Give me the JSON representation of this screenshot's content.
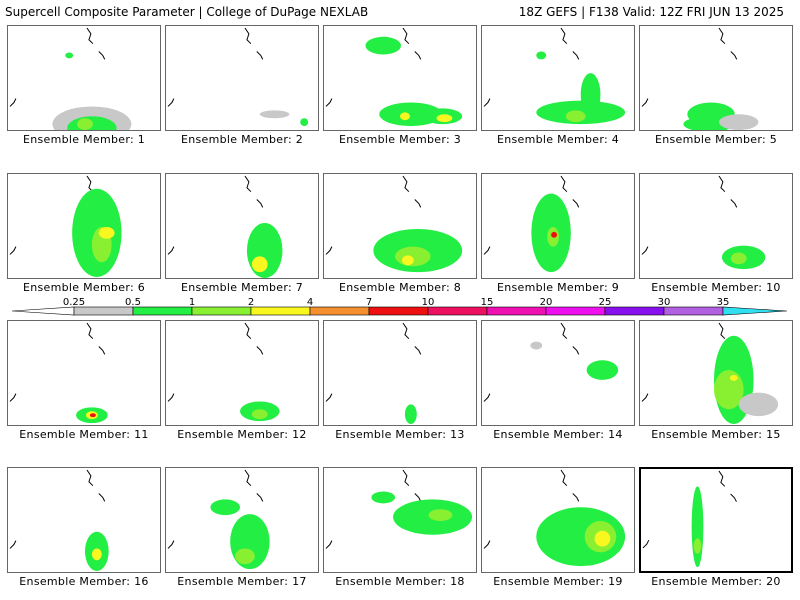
{
  "header": {
    "left": "Supercell Composite Parameter | College of DuPage NEXLAB",
    "right": "18Z GEFS | F138 Valid: 12Z FRI JUN 13 2025"
  },
  "members": [
    {
      "label": "Ensemble Member: 1"
    },
    {
      "label": "Ensemble Member: 2"
    },
    {
      "label": "Ensemble Member: 3"
    },
    {
      "label": "Ensemble Member: 4"
    },
    {
      "label": "Ensemble Member: 5"
    },
    {
      "label": "Ensemble Member: 6"
    },
    {
      "label": "Ensemble Member: 7"
    },
    {
      "label": "Ensemble Member: 8"
    },
    {
      "label": "Ensemble Member: 9"
    },
    {
      "label": "Ensemble Member: 10"
    },
    {
      "label": "Ensemble Member: 11"
    },
    {
      "label": "Ensemble Member: 12"
    },
    {
      "label": "Ensemble Member: 13"
    },
    {
      "label": "Ensemble Member: 14"
    },
    {
      "label": "Ensemble Member: 15"
    },
    {
      "label": "Ensemble Member: 16"
    },
    {
      "label": "Ensemble Member: 17"
    },
    {
      "label": "Ensemble Member: 18"
    },
    {
      "label": "Ensemble Member: 19"
    },
    {
      "label": "Ensemble Member: 20",
      "selected": true
    }
  ],
  "colorbar": {
    "ticks": [
      "0.25",
      "0.5",
      "1",
      "2",
      "4",
      "7",
      "10",
      "15",
      "20",
      "25",
      "30",
      "35"
    ],
    "colors": [
      "#c8c8c8",
      "#22ee44",
      "#88f030",
      "#f8f820",
      "#f49030",
      "#ee1010",
      "#ee1060",
      "#ee10b0",
      "#ee10ee",
      "#8810ee",
      "#b060e0",
      "#30e0f0"
    ]
  }
}
